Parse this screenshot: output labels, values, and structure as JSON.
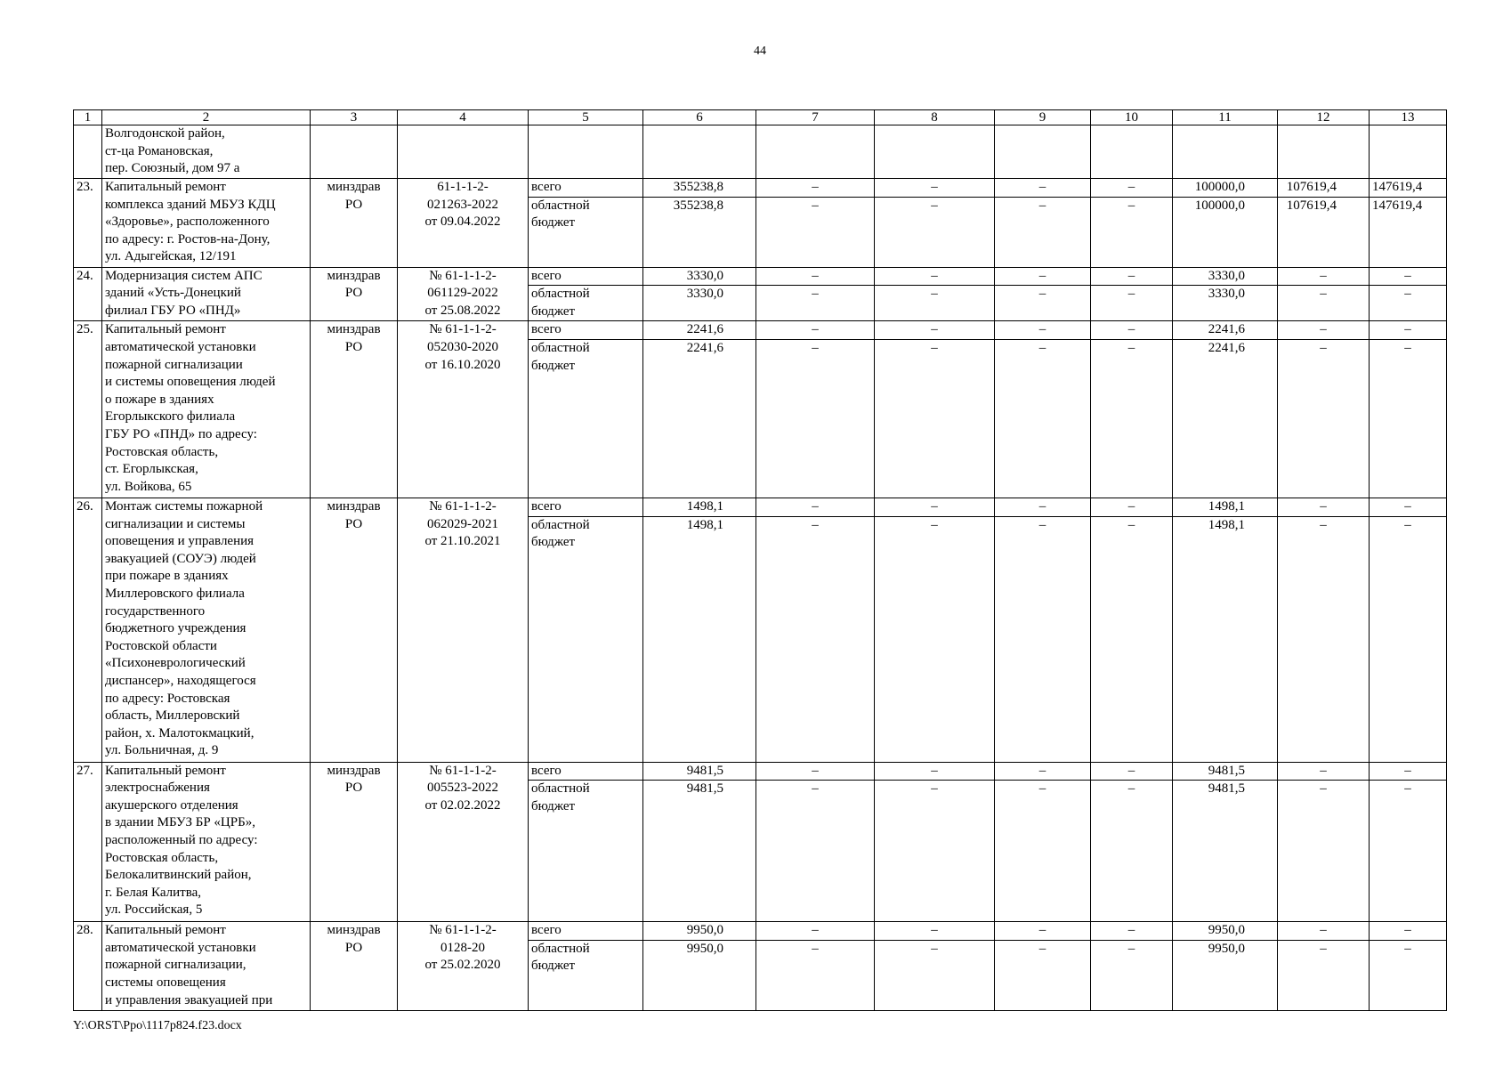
{
  "page_number": "44",
  "footer": "Y:\\ORST\\Ppo\\1117p824.f23.docx",
  "columns": [
    "1",
    "2",
    "3",
    "4",
    "5",
    "6",
    "7",
    "8",
    "9",
    "10",
    "11",
    "12",
    "13"
  ],
  "continuation": {
    "description": "Волгодонской район,\nст-ца Романовская,\nпер. Союзный, дом 97 а"
  },
  "rows": [
    {
      "no": "23.",
      "description": "Капитальный ремонт\nкомплекса зданий МБУЗ КДЦ\n«Здоровье», расположенного\nпо адресу: г. Ростов-на-Дону,\nул. Адыгейская, 12/191",
      "customer": "минздрав\nРО",
      "document": "61-1-1-2-\n021263-2022\nот 09.04.2022",
      "total": {
        "label": "всего",
        "values": [
          "355238,8",
          "–",
          "–",
          "–",
          "–",
          "100000,0",
          "107619,4",
          "147619,4"
        ]
      },
      "regional": {
        "label": "областной\nбюджет",
        "values": [
          "355238,8",
          "–",
          "–",
          "–",
          "–",
          "100000,0",
          "107619,4",
          "147619,4"
        ]
      }
    },
    {
      "no": "24.",
      "description": "Модернизация систем АПС\nзданий «Усть-Донецкий\nфилиал ГБУ РО «ПНД»",
      "customer": "минздрав\nРО",
      "document": "№ 61-1-1-2-\n061129-2022\nот 25.08.2022",
      "total": {
        "label": "всего",
        "values": [
          "3330,0",
          "–",
          "–",
          "–",
          "–",
          "3330,0",
          "–",
          "–"
        ]
      },
      "regional": {
        "label": "областной\nбюджет",
        "values": [
          "3330,0",
          "–",
          "–",
          "–",
          "–",
          "3330,0",
          "–",
          "–"
        ]
      }
    },
    {
      "no": "25.",
      "description": "Капитальный ремонт\nавтоматической установки\nпожарной сигнализации\nи системы оповещения людей\nо пожаре в зданиях\nЕгорлыкского филиала\nГБУ РО «ПНД» по адресу:\nРостовская область,\nст. Егорлыкская,\nул. Войкова, 65",
      "customer": "минздрав\nРО",
      "document": "№ 61-1-1-2-\n052030-2020\nот 16.10.2020",
      "total": {
        "label": "всего",
        "values": [
          "2241,6",
          "–",
          "–",
          "–",
          "–",
          "2241,6",
          "–",
          "–"
        ]
      },
      "regional": {
        "label": "областной\nбюджет",
        "values": [
          "2241,6",
          "–",
          "–",
          "–",
          "–",
          "2241,6",
          "–",
          "–"
        ]
      }
    },
    {
      "no": "26.",
      "description": "Монтаж системы пожарной\nсигнализации и системы\nоповещения и управления\nэвакуацией (СОУЭ) людей\nпри пожаре в зданиях\nМиллеровского филиала\nгосударственного\nбюджетного учреждения\nРостовской области\n«Психоневрологический\nдиспансер», находящегося\nпо адресу: Ростовская\nобласть, Миллеровский\nрайон, х. Малотокмацкий,\nул. Больничная, д. 9",
      "customer": "минздрав\nРО",
      "document": "№ 61-1-1-2-\n062029-2021\nот 21.10.2021",
      "total": {
        "label": "всего",
        "values": [
          "1498,1",
          "–",
          "–",
          "–",
          "–",
          "1498,1",
          "–",
          "–"
        ]
      },
      "regional": {
        "label": "областной\nбюджет",
        "values": [
          "1498,1",
          "–",
          "–",
          "–",
          "–",
          "1498,1",
          "–",
          "–"
        ]
      }
    },
    {
      "no": "27.",
      "description": "Капитальный ремонт\nэлектроснабжения\nакушерского отделения\nв здании МБУЗ БР «ЦРБ»,\nрасположенный по адресу:\nРостовская область,\nБелокалитвинский район,\nг. Белая Калитва,\nул. Российская, 5",
      "customer": "минздрав\nРО",
      "document": "№ 61-1-1-2-\n005523-2022\nот 02.02.2022",
      "total": {
        "label": "всего",
        "values": [
          "9481,5",
          "–",
          "–",
          "–",
          "–",
          "9481,5",
          "–",
          "–"
        ]
      },
      "regional": {
        "label": "областной\nбюджет",
        "values": [
          "9481,5",
          "–",
          "–",
          "–",
          "–",
          "9481,5",
          "–",
          "–"
        ]
      }
    },
    {
      "no": "28.",
      "description": "Капитальный ремонт\nавтоматической установки\nпожарной сигнализации,\nсистемы оповещения\nи управления эвакуацией при",
      "customer": "минздрав\nРО",
      "document": "№ 61-1-1-2-\n0128-20\nот 25.02.2020",
      "total": {
        "label": "всего",
        "values": [
          "9950,0",
          "–",
          "–",
          "–",
          "–",
          "9950,0",
          "–",
          "–"
        ]
      },
      "regional": {
        "label": "областной\nбюджет",
        "values": [
          "9950,0",
          "–",
          "–",
          "–",
          "–",
          "9950,0",
          "–",
          "–"
        ]
      }
    }
  ]
}
